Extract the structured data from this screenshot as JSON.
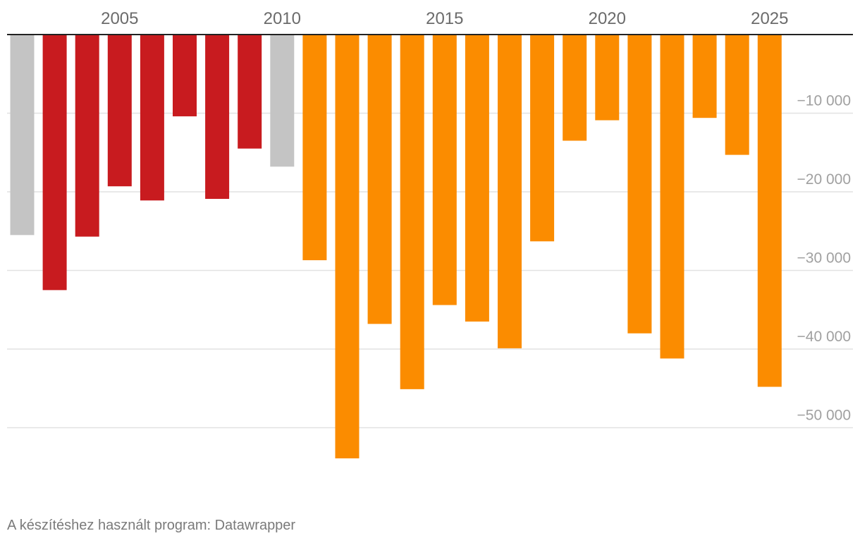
{
  "chart_data": {
    "type": "bar",
    "title": "",
    "xlabel": "",
    "ylabel": "",
    "x": [
      2002,
      2003,
      2004,
      2005,
      2006,
      2007,
      2008,
      2009,
      2010,
      2011,
      2012,
      2013,
      2014,
      2015,
      2016,
      2017,
      2018,
      2019,
      2020,
      2021,
      2022,
      2023,
      2024,
      2025
    ],
    "values": [
      -25500,
      -32500,
      -25700,
      -19300,
      -21100,
      -10400,
      -20900,
      -14500,
      -16800,
      -28700,
      -53900,
      -36800,
      -45100,
      -34400,
      -36500,
      -39900,
      -26300,
      -13500,
      -10900,
      -38000,
      -41200,
      -10600,
      -15300,
      -44800
    ],
    "bar_colors": [
      "#c4c4c4",
      "#c81b1f",
      "#c81b1f",
      "#c81b1f",
      "#c81b1f",
      "#c81b1f",
      "#c81b1f",
      "#c81b1f",
      "#c4c4c4",
      "#fb8c00",
      "#fb8c00",
      "#fb8c00",
      "#fb8c00",
      "#fb8c00",
      "#fb8c00",
      "#fb8c00",
      "#fb8c00",
      "#fb8c00",
      "#fb8c00",
      "#fb8c00",
      "#fb8c00",
      "#fb8c00",
      "#fb8c00",
      "#fb8c00"
    ],
    "x_ticks": [
      2005,
      2010,
      2015,
      2020,
      2025
    ],
    "x_tick_labels": [
      "2005",
      "2010",
      "2015",
      "2020",
      "2025"
    ],
    "y_ticks": [
      -10000,
      -20000,
      -30000,
      -40000,
      -50000
    ],
    "y_tick_labels": [
      "−10 000",
      "−20 000",
      "−30 000",
      "−40 000",
      "−50 000"
    ],
    "ylim": [
      -56000,
      0
    ],
    "x_axis_position": "top",
    "y_axis_position": "right",
    "grid": true
  },
  "footer": {
    "credit": "A készítéshez használt program: Datawrapper"
  }
}
